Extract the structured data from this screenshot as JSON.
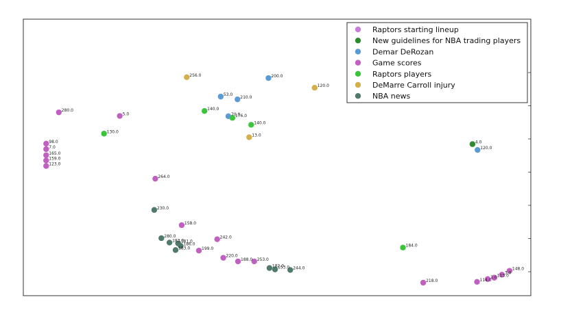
{
  "chart_data": {
    "type": "scatter",
    "title": "",
    "xlabel": "",
    "ylabel": "",
    "xlim": [
      0,
      100
    ],
    "ylim": [
      0,
      100
    ],
    "grid": false,
    "legend_position": "top-right",
    "series": [
      {
        "name": "Raptors starting lineup",
        "color": "#c77dd9",
        "points": []
      },
      {
        "name": "New guidelines for NBA trading players",
        "color": "#2e8b2e",
        "points": [
          {
            "x": 88.5,
            "y": 54.8,
            "label": "4.0"
          }
        ]
      },
      {
        "name": "Demar DeRozan",
        "color": "#5b9bd5",
        "points": [
          {
            "x": 48.3,
            "y": 78.7,
            "label": "200.0"
          },
          {
            "x": 38.9,
            "y": 72.0,
            "label": "53.0"
          },
          {
            "x": 42.2,
            "y": 71.0,
            "label": "210.0"
          },
          {
            "x": 40.4,
            "y": 64.9,
            "label": "70.0"
          },
          {
            "x": 89.5,
            "y": 52.7,
            "label": "120.0"
          }
        ]
      },
      {
        "name": "Game scores",
        "color": "#c060c0",
        "points": [
          {
            "x": 7.0,
            "y": 66.3,
            "label": "280.0"
          },
          {
            "x": 19.0,
            "y": 65.0,
            "label": "5.0"
          },
          {
            "x": 4.5,
            "y": 55.0,
            "label": "98.0"
          },
          {
            "x": 4.5,
            "y": 53.0,
            "label": "7.0"
          },
          {
            "x": 4.5,
            "y": 50.8,
            "label": "165.0"
          },
          {
            "x": 4.5,
            "y": 48.9,
            "label": "159.0"
          },
          {
            "x": 4.5,
            "y": 46.9,
            "label": "123.0"
          },
          {
            "x": 26.0,
            "y": 42.3,
            "label": "264.0"
          },
          {
            "x": 31.2,
            "y": 25.5,
            "label": "158.0"
          },
          {
            "x": 38.2,
            "y": 20.4,
            "label": "242.0"
          },
          {
            "x": 34.6,
            "y": 16.3,
            "label": "199.0"
          },
          {
            "x": 39.4,
            "y": 13.7,
            "label": "220.0"
          },
          {
            "x": 42.3,
            "y": 12.4,
            "label": "188.0"
          },
          {
            "x": 45.5,
            "y": 12.4,
            "label": "253.0"
          },
          {
            "x": 78.8,
            "y": 4.7,
            "label": "218.0"
          },
          {
            "x": 89.4,
            "y": 5.0,
            "label": "114.0"
          },
          {
            "x": 91.5,
            "y": 6.0,
            "label": "1.0"
          },
          {
            "x": 92.8,
            "y": 6.5,
            "label": "113.0"
          },
          {
            "x": 94.3,
            "y": 7.6,
            "label": "3.0"
          },
          {
            "x": 95.8,
            "y": 9.0,
            "label": "148.0"
          }
        ]
      },
      {
        "name": "Raptors players",
        "color": "#3cc43c",
        "points": [
          {
            "x": 15.9,
            "y": 58.6,
            "label": "130.0"
          },
          {
            "x": 35.7,
            "y": 66.8,
            "label": "140.0"
          },
          {
            "x": 41.2,
            "y": 64.3,
            "label": "176.0"
          },
          {
            "x": 44.9,
            "y": 61.8,
            "label": "140.0"
          },
          {
            "x": 74.8,
            "y": 17.4,
            "label": "184.0"
          }
        ]
      },
      {
        "name": "DeMarre Carroll injury",
        "color": "#d4b04a",
        "points": [
          {
            "x": 32.2,
            "y": 79.0,
            "label": "256.0"
          },
          {
            "x": 44.5,
            "y": 57.3,
            "label": "13.0"
          },
          {
            "x": 57.4,
            "y": 75.2,
            "label": "120.0"
          }
        ]
      },
      {
        "name": "NBA news",
        "color": "#4f7a6c",
        "points": [
          {
            "x": 25.8,
            "y": 31.0,
            "label": "230.0"
          },
          {
            "x": 27.2,
            "y": 20.8,
            "label": "280.0"
          },
          {
            "x": 28.8,
            "y": 19.2,
            "label": "183.0"
          },
          {
            "x": 30.5,
            "y": 18.9,
            "label": "181.0"
          },
          {
            "x": 31.0,
            "y": 18.0,
            "label": "186.0"
          },
          {
            "x": 30.0,
            "y": 16.5,
            "label": "183.0"
          },
          {
            "x": 48.5,
            "y": 10.0,
            "label": "182.0"
          },
          {
            "x": 49.6,
            "y": 9.5,
            "label": "153.0"
          },
          {
            "x": 52.6,
            "y": 9.3,
            "label": "244.0"
          }
        ]
      }
    ]
  }
}
